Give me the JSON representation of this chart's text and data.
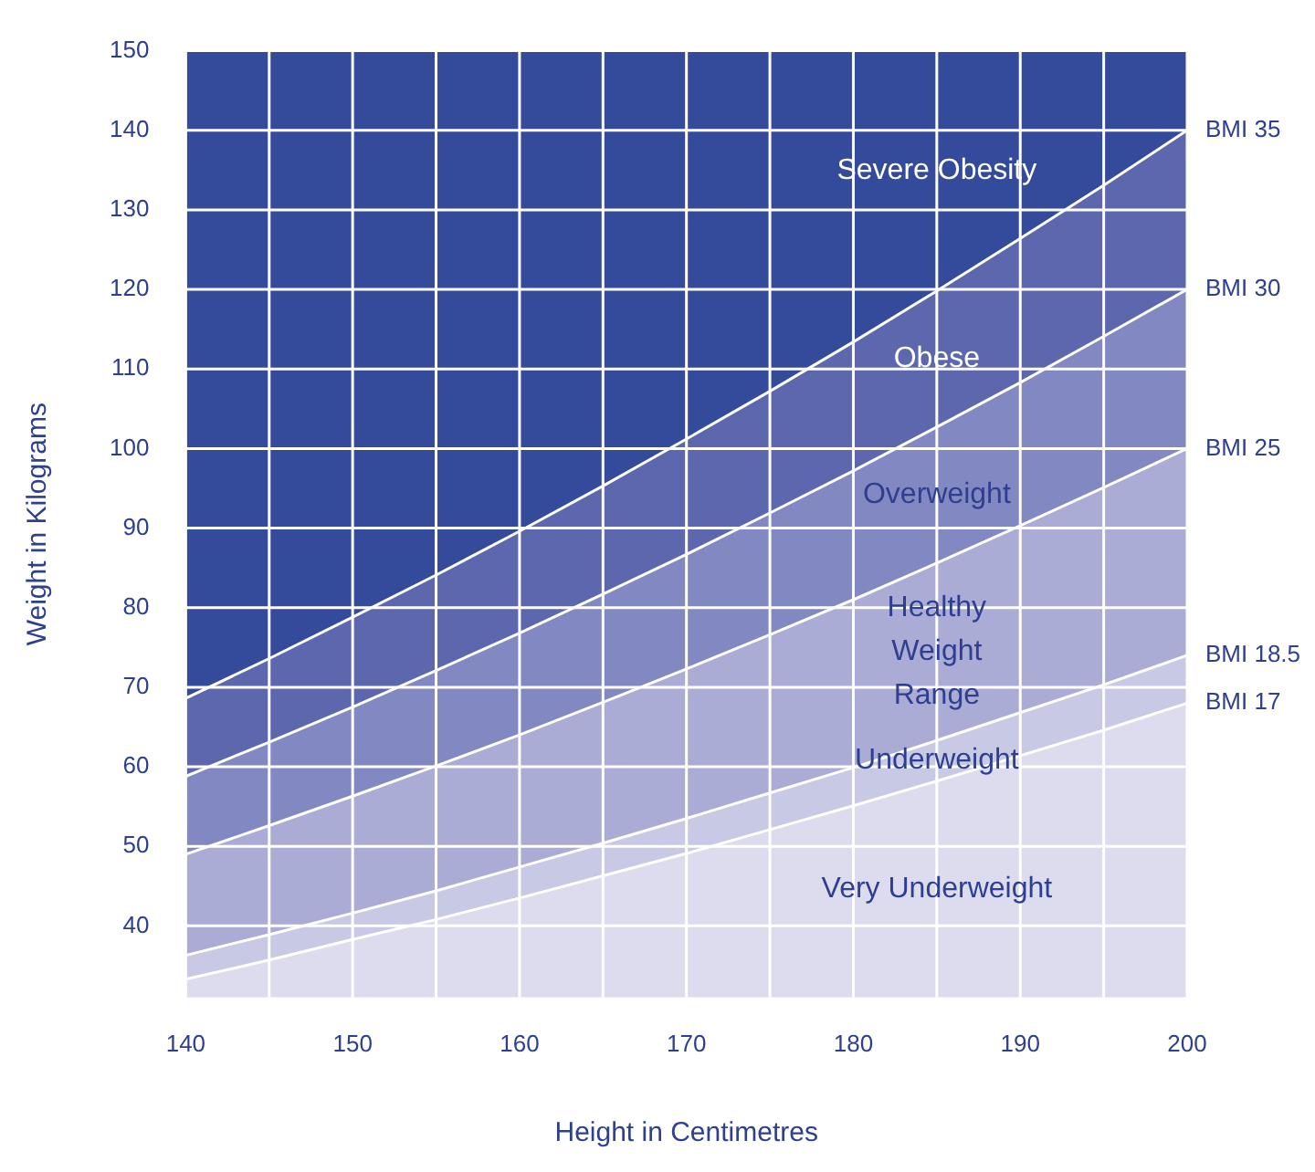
{
  "chart_data": {
    "type": "area",
    "xlabel": "Height in Centimetres",
    "ylabel": "Weight in Kilograms",
    "x": [
      140,
      145,
      150,
      155,
      160,
      165,
      170,
      175,
      180,
      185,
      190,
      195,
      200
    ],
    "series": [
      {
        "name": "Very Underweight",
        "color": "#dcdcee",
        "values": [
          33.3,
          35.7,
          38.3,
          40.8,
          43.5,
          46.3,
          49.1,
          52.1,
          55.1,
          58.2,
          61.4,
          64.6,
          68.0
        ]
      },
      {
        "name": "Underweight",
        "color": "#c8c9e4",
        "values": [
          36.3,
          38.9,
          41.6,
          44.4,
          47.4,
          50.4,
          53.5,
          56.7,
          59.9,
          63.3,
          66.8,
          70.3,
          74.0
        ]
      },
      {
        "name": "Healthy Weight Range",
        "color": "#abacd6",
        "values": [
          49.0,
          52.6,
          56.3,
          60.1,
          64.0,
          68.1,
          72.3,
          76.6,
          81.0,
          85.6,
          90.3,
          95.1,
          100.0
        ]
      },
      {
        "name": "Overweight",
        "color": "#8288c2",
        "values": [
          58.8,
          63.1,
          67.5,
          72.1,
          76.8,
          81.7,
          86.7,
          91.9,
          97.2,
          102.7,
          108.3,
          114.1,
          120.0
        ]
      },
      {
        "name": "Obese",
        "color": "#5d67ae",
        "values": [
          68.6,
          73.6,
          78.8,
          84.1,
          89.6,
          95.3,
          101.2,
          107.2,
          113.4,
          119.8,
          126.4,
          133.1,
          140.0
        ]
      },
      {
        "name": "Severe Obesity",
        "color": "#344a9a",
        "values": [
          150,
          150,
          150,
          150,
          150,
          150,
          150,
          150,
          150,
          150,
          150,
          150,
          150
        ]
      }
    ],
    "xlim": [
      140,
      200
    ],
    "xticks": [
      140,
      {
        "value": 145,
        "label": null
      },
      150,
      {
        "value": 155,
        "label": null
      },
      160,
      {
        "value": 165,
        "label": null
      },
      170,
      {
        "value": 175,
        "label": null
      },
      180,
      {
        "value": 185,
        "label": null
      },
      190,
      {
        "value": 195,
        "label": null
      },
      200
    ],
    "ylim": [
      31,
      150
    ],
    "yticks": [
      40,
      50,
      60,
      70,
      80,
      90,
      100,
      110,
      120,
      130,
      140,
      150
    ],
    "grid": true,
    "annotations": [
      "BMI 35",
      "BMI 30",
      "BMI 25",
      "BMI 18.5",
      "BMI 17"
    ]
  }
}
